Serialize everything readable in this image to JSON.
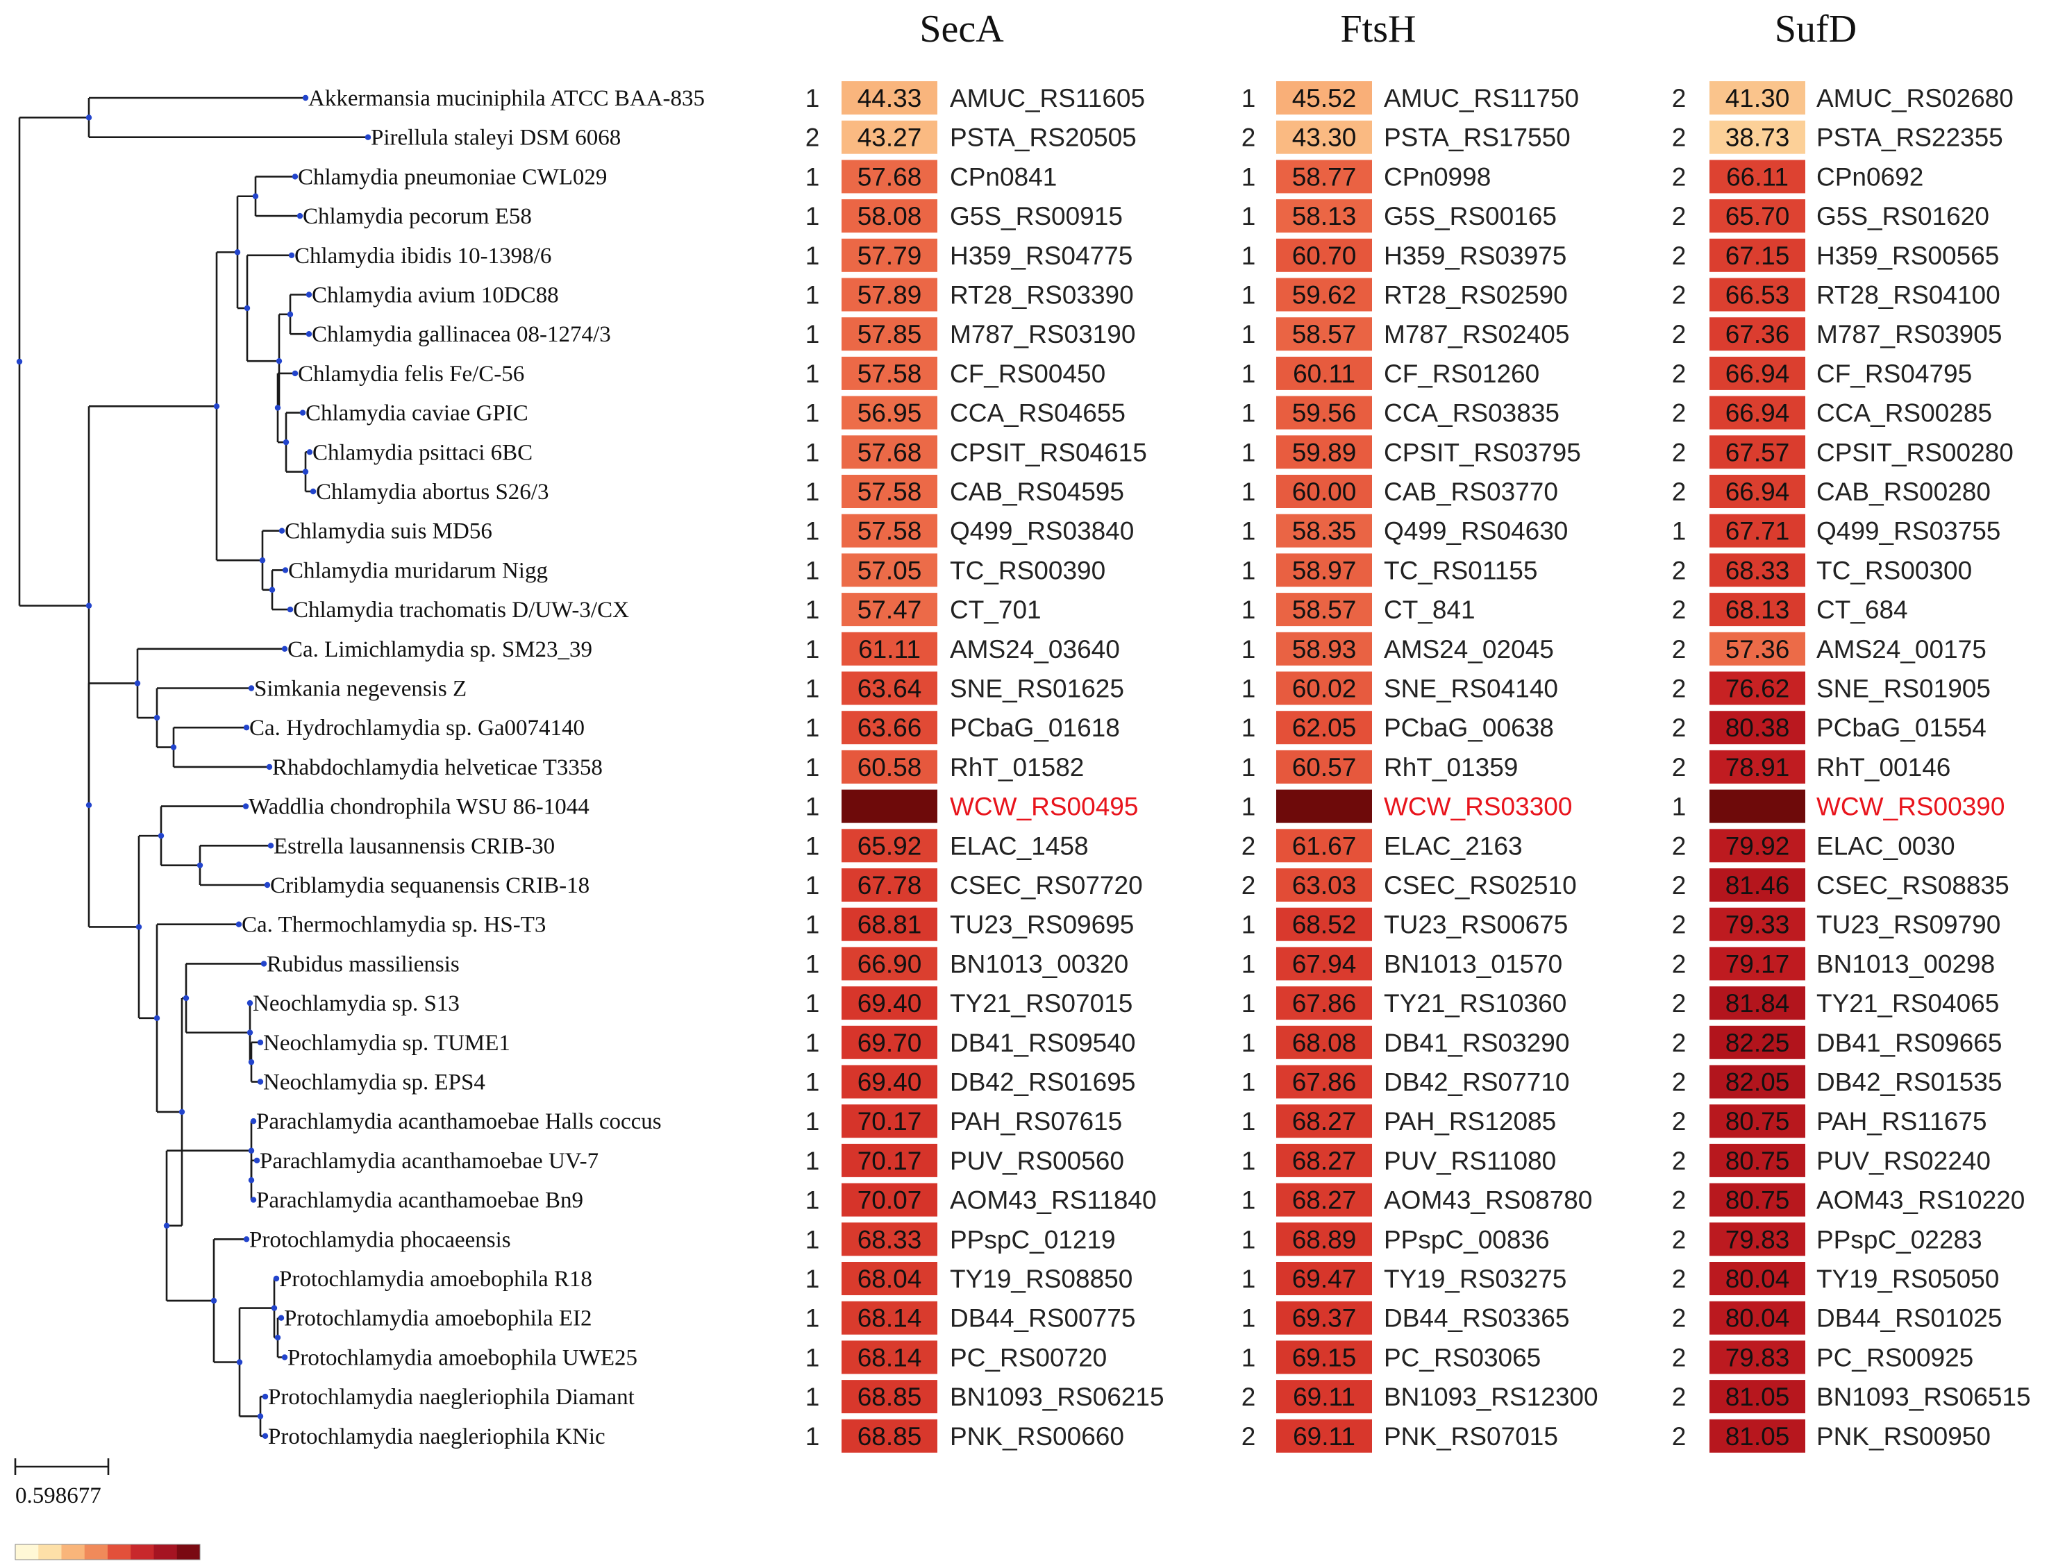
{
  "figure": {
    "columns": [
      "SecA",
      "FtsH",
      "SufD"
    ],
    "scale_bar_label": "0.598677",
    "highlight_color": "#e8141c",
    "legend_colors": [
      "#fff8d6",
      "#fde0a8",
      "#f9b57a",
      "#f08a5a",
      "#e3503a",
      "#c8282c",
      "#a51422",
      "#7a0a12"
    ]
  },
  "rows": [
    {
      "taxon": "Akkermansia muciniphila ATCC BAA-835",
      "secA": [
        "1",
        "44.33",
        "AMUC_RS11605"
      ],
      "ftsH": [
        "1",
        "45.52",
        "AMUC_RS11750"
      ],
      "sufD": [
        "2",
        "41.30",
        "AMUC_RS02680"
      ]
    },
    {
      "taxon": "Pirellula staleyi DSM 6068",
      "secA": [
        "2",
        "43.27",
        "PSTA_RS20505"
      ],
      "ftsH": [
        "2",
        "43.30",
        "PSTA_RS17550"
      ],
      "sufD": [
        "2",
        "38.73",
        "PSTA_RS22355"
      ]
    },
    {
      "taxon": "Chlamydia pneumoniae CWL029",
      "secA": [
        "1",
        "57.68",
        "CPn0841"
      ],
      "ftsH": [
        "1",
        "58.77",
        "CPn0998"
      ],
      "sufD": [
        "2",
        "66.11",
        "CPn0692"
      ]
    },
    {
      "taxon": "Chlamydia pecorum E58",
      "secA": [
        "1",
        "58.08",
        "G5S_RS00915"
      ],
      "ftsH": [
        "1",
        "58.13",
        "G5S_RS00165"
      ],
      "sufD": [
        "2",
        "65.70",
        "G5S_RS01620"
      ]
    },
    {
      "taxon": "Chlamydia ibidis 10-1398/6",
      "secA": [
        "1",
        "57.79",
        "H359_RS04775"
      ],
      "ftsH": [
        "1",
        "60.70",
        "H359_RS03975"
      ],
      "sufD": [
        "2",
        "67.15",
        "H359_RS00565"
      ]
    },
    {
      "taxon": "Chlamydia avium 10DC88",
      "secA": [
        "1",
        "57.89",
        "RT28_RS03390"
      ],
      "ftsH": [
        "1",
        "59.62",
        "RT28_RS02590"
      ],
      "sufD": [
        "2",
        "66.53",
        "RT28_RS04100"
      ]
    },
    {
      "taxon": "Chlamydia gallinacea 08-1274/3",
      "secA": [
        "1",
        "57.85",
        "M787_RS03190"
      ],
      "ftsH": [
        "1",
        "58.57",
        "M787_RS02405"
      ],
      "sufD": [
        "2",
        "67.36",
        "M787_RS03905"
      ]
    },
    {
      "taxon": "Chlamydia felis Fe/C-56",
      "secA": [
        "1",
        "57.58",
        "CF_RS00450"
      ],
      "ftsH": [
        "1",
        "60.11",
        "CF_RS01260"
      ],
      "sufD": [
        "2",
        "66.94",
        "CF_RS04795"
      ]
    },
    {
      "taxon": "Chlamydia caviae GPIC",
      "secA": [
        "1",
        "56.95",
        "CCA_RS04655"
      ],
      "ftsH": [
        "1",
        "59.56",
        "CCA_RS03835"
      ],
      "sufD": [
        "2",
        "66.94",
        "CCA_RS00285"
      ]
    },
    {
      "taxon": "Chlamydia psittaci 6BC",
      "secA": [
        "1",
        "57.68",
        "CPSIT_RS04615"
      ],
      "ftsH": [
        "1",
        "59.89",
        "CPSIT_RS03795"
      ],
      "sufD": [
        "2",
        "67.57",
        "CPSIT_RS00280"
      ]
    },
    {
      "taxon": "Chlamydia abortus S26/3",
      "secA": [
        "1",
        "57.58",
        "CAB_RS04595"
      ],
      "ftsH": [
        "1",
        "60.00",
        "CAB_RS03770"
      ],
      "sufD": [
        "2",
        "66.94",
        "CAB_RS00280"
      ]
    },
    {
      "taxon": "Chlamydia suis MD56",
      "secA": [
        "1",
        "57.58",
        "Q499_RS03840"
      ],
      "ftsH": [
        "1",
        "58.35",
        "Q499_RS04630"
      ],
      "sufD": [
        "1",
        "67.71",
        "Q499_RS03755"
      ]
    },
    {
      "taxon": "Chlamydia muridarum Nigg",
      "secA": [
        "1",
        "57.05",
        "TC_RS00390"
      ],
      "ftsH": [
        "1",
        "58.97",
        "TC_RS01155"
      ],
      "sufD": [
        "2",
        "68.33",
        "TC_RS00300"
      ]
    },
    {
      "taxon": "Chlamydia trachomatis D/UW-3/CX",
      "secA": [
        "1",
        "57.47",
        "CT_701"
      ],
      "ftsH": [
        "1",
        "58.57",
        "CT_841"
      ],
      "sufD": [
        "2",
        "68.13",
        "CT_684"
      ]
    },
    {
      "taxon": "Ca. Limichlamydia sp. SM23_39",
      "secA": [
        "1",
        "61.11",
        "AMS24_03640"
      ],
      "ftsH": [
        "1",
        "58.93",
        "AMS24_02045"
      ],
      "sufD": [
        "2",
        "57.36",
        "AMS24_00175"
      ]
    },
    {
      "taxon": "Simkania negevensis Z",
      "secA": [
        "1",
        "63.64",
        "SNE_RS01625"
      ],
      "ftsH": [
        "1",
        "60.02",
        "SNE_RS04140"
      ],
      "sufD": [
        "2",
        "76.62",
        "SNE_RS01905"
      ]
    },
    {
      "taxon": "Ca. Hydrochlamydia sp. Ga0074140",
      "secA": [
        "1",
        "63.66",
        "PCbaG_01618"
      ],
      "ftsH": [
        "1",
        "62.05",
        "PCbaG_00638"
      ],
      "sufD": [
        "2",
        "80.38",
        "PCbaG_01554"
      ]
    },
    {
      "taxon": "Rhabdochlamydia helveticae T3358",
      "secA": [
        "1",
        "60.58",
        "RhT_01582"
      ],
      "ftsH": [
        "1",
        "60.57",
        "RhT_01359"
      ],
      "sufD": [
        "2",
        "78.91",
        "RhT_00146"
      ]
    },
    {
      "taxon": "Waddlia chondrophila WSU 86-1044",
      "highlight": true,
      "secA": [
        "1",
        "",
        "WCW_RS00495"
      ],
      "ftsH": [
        "1",
        "",
        "WCW_RS03300"
      ],
      "sufD": [
        "1",
        "",
        "WCW_RS00390"
      ]
    },
    {
      "taxon": "Estrella lausannensis CRIB-30",
      "secA": [
        "1",
        "65.92",
        "ELAC_1458"
      ],
      "ftsH": [
        "2",
        "61.67",
        "ELAC_2163"
      ],
      "sufD": [
        "2",
        "79.92",
        "ELAC_0030"
      ]
    },
    {
      "taxon": "Criblamydia sequanensis CRIB-18",
      "secA": [
        "1",
        "67.78",
        "CSEC_RS07720"
      ],
      "ftsH": [
        "2",
        "63.03",
        "CSEC_RS02510"
      ],
      "sufD": [
        "2",
        "81.46",
        "CSEC_RS08835"
      ]
    },
    {
      "taxon": "Ca. Thermochlamydia sp. HS-T3",
      "secA": [
        "1",
        "68.81",
        "TU23_RS09695"
      ],
      "ftsH": [
        "1",
        "68.52",
        "TU23_RS00675"
      ],
      "sufD": [
        "2",
        "79.33",
        "TU23_RS09790"
      ]
    },
    {
      "taxon": "Rubidus massiliensis",
      "secA": [
        "1",
        "66.90",
        "BN1013_00320"
      ],
      "ftsH": [
        "1",
        "67.94",
        "BN1013_01570"
      ],
      "sufD": [
        "2",
        "79.17",
        "BN1013_00298"
      ]
    },
    {
      "taxon": "Neochlamydia sp. S13",
      "secA": [
        "1",
        "69.40",
        "TY21_RS07015"
      ],
      "ftsH": [
        "1",
        "67.86",
        "TY21_RS10360"
      ],
      "sufD": [
        "2",
        "81.84",
        "TY21_RS04065"
      ]
    },
    {
      "taxon": "Neochlamydia sp. TUME1",
      "secA": [
        "1",
        "69.70",
        "DB41_RS09540"
      ],
      "ftsH": [
        "1",
        "68.08",
        "DB41_RS03290"
      ],
      "sufD": [
        "2",
        "82.25",
        "DB41_RS09665"
      ]
    },
    {
      "taxon": "Neochlamydia sp. EPS4",
      "secA": [
        "1",
        "69.40",
        "DB42_RS01695"
      ],
      "ftsH": [
        "1",
        "67.86",
        "DB42_RS07710"
      ],
      "sufD": [
        "2",
        "82.05",
        "DB42_RS01535"
      ]
    },
    {
      "taxon": "Parachlamydia acanthamoebae Halls coccus",
      "secA": [
        "1",
        "70.17",
        "PAH_RS07615"
      ],
      "ftsH": [
        "1",
        "68.27",
        "PAH_RS12085"
      ],
      "sufD": [
        "2",
        "80.75",
        "PAH_RS11675"
      ]
    },
    {
      "taxon": "Parachlamydia acanthamoebae UV-7",
      "secA": [
        "1",
        "70.17",
        "PUV_RS00560"
      ],
      "ftsH": [
        "1",
        "68.27",
        "PUV_RS11080"
      ],
      "sufD": [
        "2",
        "80.75",
        "PUV_RS02240"
      ]
    },
    {
      "taxon": "Parachlamydia acanthamoebae Bn9",
      "secA": [
        "1",
        "70.07",
        "AOM43_RS11840"
      ],
      "ftsH": [
        "1",
        "68.27",
        "AOM43_RS08780"
      ],
      "sufD": [
        "2",
        "80.75",
        "AOM43_RS10220"
      ]
    },
    {
      "taxon": "Protochlamydia phocaeensis",
      "secA": [
        "1",
        "68.33",
        "PPspC_01219"
      ],
      "ftsH": [
        "1",
        "68.89",
        "PPspC_00836"
      ],
      "sufD": [
        "2",
        "79.83",
        "PPspC_02283"
      ]
    },
    {
      "taxon": "Protochlamydia amoebophila R18",
      "secA": [
        "1",
        "68.04",
        "TY19_RS08850"
      ],
      "ftsH": [
        "1",
        "69.47",
        "TY19_RS03275"
      ],
      "sufD": [
        "2",
        "80.04",
        "TY19_RS05050"
      ]
    },
    {
      "taxon": "Protochlamydia amoebophila EI2",
      "secA": [
        "1",
        "68.14",
        "DB44_RS00775"
      ],
      "ftsH": [
        "1",
        "69.37",
        "DB44_RS03365"
      ],
      "sufD": [
        "2",
        "80.04",
        "DB44_RS01025"
      ]
    },
    {
      "taxon": "Protochlamydia amoebophila UWE25",
      "secA": [
        "1",
        "68.14",
        "PC_RS00720"
      ],
      "ftsH": [
        "1",
        "69.15",
        "PC_RS03065"
      ],
      "sufD": [
        "2",
        "79.83",
        "PC_RS00925"
      ]
    },
    {
      "taxon": "Protochlamydia naegleriophila Diamant",
      "secA": [
        "1",
        "68.85",
        "BN1093_RS06215"
      ],
      "ftsH": [
        "2",
        "69.11",
        "BN1093_RS12300"
      ],
      "sufD": [
        "2",
        "81.05",
        "BN1093_RS06515"
      ]
    },
    {
      "taxon": "Protochlamydia naegleriophila KNic",
      "secA": [
        "1",
        "68.85",
        "PNK_RS00660"
      ],
      "ftsH": [
        "2",
        "69.11",
        "PNK_RS07015"
      ],
      "sufD": [
        "2",
        "81.05",
        "PNK_RS00950"
      ]
    }
  ]
}
